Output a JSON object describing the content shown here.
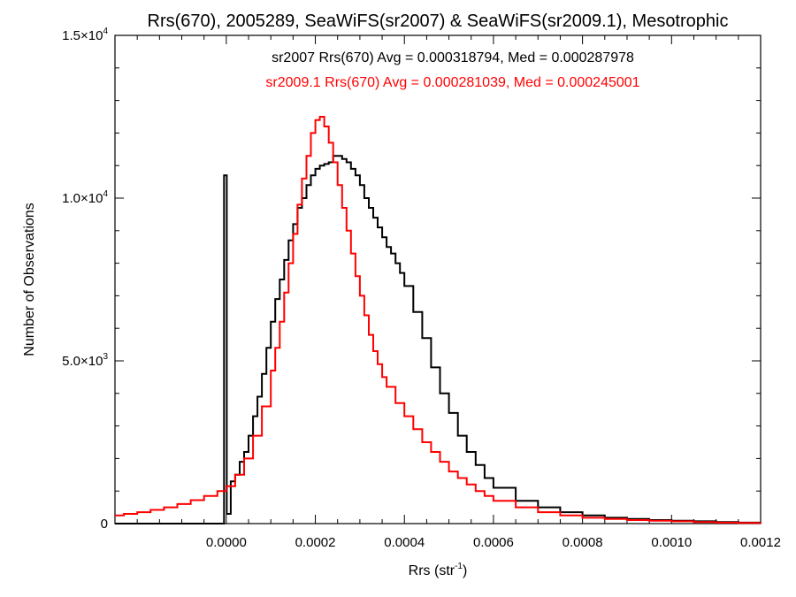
{
  "chart_data": {
    "type": "line",
    "step": true,
    "title": "Rrs(670), 2005289, SeaWiFS(sr2007) & SeaWiFS(sr2009.1), Mesotrophic",
    "xlabel": {
      "base": "Rrs (str",
      "sup": "-1",
      "end": ")"
    },
    "ylabel": "Number of Observations",
    "xlim": [
      -0.00025,
      0.0012
    ],
    "ylim": [
      0,
      15000
    ],
    "x_ticks": [
      {
        "value": 0.0,
        "label": "0.0000"
      },
      {
        "value": 0.0002,
        "label": "0.0002"
      },
      {
        "value": 0.0004,
        "label": "0.0004"
      },
      {
        "value": 0.0006,
        "label": "0.0006"
      },
      {
        "value": 0.0008,
        "label": "0.0008"
      },
      {
        "value": 0.001,
        "label": "0.0010"
      },
      {
        "value": 0.0012,
        "label": "0.0012"
      }
    ],
    "y_ticks": [
      {
        "value": 0,
        "label": "0",
        "exp": ""
      },
      {
        "value": 5000,
        "label": "5.0×10",
        "exp": "3"
      },
      {
        "value": 10000,
        "label": "1.0×10",
        "exp": "4"
      },
      {
        "value": 15000,
        "label": "1.5×10",
        "exp": "4"
      }
    ],
    "annotations": [
      {
        "text": "sr2007 Rrs(670) Avg = 0.000318794, Med = 0.000287978",
        "color": "#000000"
      },
      {
        "text": "sr2009.1 Rrs(670) Avg = 0.000281039, Med = 0.000245001",
        "color": "#ff0000"
      }
    ],
    "series": [
      {
        "name": "sr2007",
        "color": "#000000",
        "x": [
          -0.00025,
          -1e-05,
          -5e-06,
          0.0,
          1e-06,
          1e-05,
          2e-05,
          3e-05,
          4e-05,
          5e-05,
          6e-05,
          7e-05,
          8e-05,
          9e-05,
          0.0001,
          0.00011,
          0.00012,
          0.00013,
          0.00014,
          0.00015,
          0.00016,
          0.00017,
          0.00018,
          0.00019,
          0.0002,
          0.00021,
          0.00022,
          0.00023,
          0.00024,
          0.00025,
          0.00026,
          0.00027,
          0.00028,
          0.00029,
          0.0003,
          0.00031,
          0.00032,
          0.00033,
          0.00034,
          0.00035,
          0.00036,
          0.00037,
          0.00038,
          0.00039,
          0.0004,
          0.00042,
          0.00044,
          0.00046,
          0.00048,
          0.0005,
          0.00052,
          0.00054,
          0.00056,
          0.00058,
          0.0006,
          0.00065,
          0.0007,
          0.00075,
          0.0008,
          0.00085,
          0.0009,
          0.00095,
          0.001,
          0.00105,
          0.0011,
          0.00115,
          0.0012
        ],
        "y": [
          0,
          0,
          10700,
          10700,
          300,
          1300,
          1500,
          1900,
          2200,
          2700,
          3300,
          3900,
          4600,
          5400,
          6200,
          6900,
          7500,
          8100,
          8700,
          9200,
          9700,
          10000,
          10400,
          10700,
          10900,
          11000,
          11050,
          11100,
          11300,
          11300,
          11200,
          11100,
          10900,
          10700,
          10400,
          10000,
          9700,
          9400,
          9100,
          8800,
          8500,
          8300,
          8000,
          7700,
          7300,
          6500,
          5700,
          4800,
          4000,
          3400,
          2700,
          2200,
          1800,
          1400,
          1100,
          700,
          500,
          350,
          250,
          180,
          140,
          110,
          90,
          70,
          50,
          30,
          20
        ]
      },
      {
        "name": "sr2009.1",
        "color": "#ff0000",
        "x": [
          -0.00025,
          -0.00023,
          -0.0002,
          -0.00017,
          -0.00014,
          -0.00011,
          -8e-05,
          -5e-05,
          -2e-05,
          0.0,
          2e-05,
          4e-05,
          6e-05,
          8e-05,
          0.0001,
          0.00011,
          0.00012,
          0.00013,
          0.00014,
          0.00015,
          0.00016,
          0.00017,
          0.00018,
          0.00019,
          0.0002,
          0.00021,
          0.00022,
          0.00023,
          0.00024,
          0.00025,
          0.00026,
          0.00027,
          0.00028,
          0.00029,
          0.0003,
          0.00031,
          0.00032,
          0.00033,
          0.00034,
          0.00035,
          0.00036,
          0.00038,
          0.0004,
          0.00042,
          0.00044,
          0.00046,
          0.00048,
          0.0005,
          0.00052,
          0.00054,
          0.00056,
          0.00058,
          0.0006,
          0.00065,
          0.0007,
          0.00075,
          0.0008,
          0.00085,
          0.0009,
          0.00095,
          0.001,
          0.00105,
          0.0011,
          0.00115,
          0.0012
        ],
        "y": [
          250,
          300,
          350,
          420,
          500,
          600,
          720,
          850,
          1000,
          1150,
          1500,
          2000,
          2700,
          3600,
          4700,
          5400,
          6200,
          7100,
          8000,
          8900,
          9800,
          10600,
          11300,
          12000,
          12400,
          12500,
          12200,
          11700,
          11100,
          10400,
          9700,
          9000,
          8300,
          7600,
          7000,
          6400,
          5800,
          5300,
          4900,
          4500,
          4200,
          3700,
          3300,
          2900,
          2500,
          2200,
          1900,
          1600,
          1400,
          1200,
          1000,
          850,
          700,
          500,
          350,
          250,
          180,
          140,
          110,
          90,
          70,
          50,
          30,
          20,
          10
        ]
      }
    ]
  }
}
